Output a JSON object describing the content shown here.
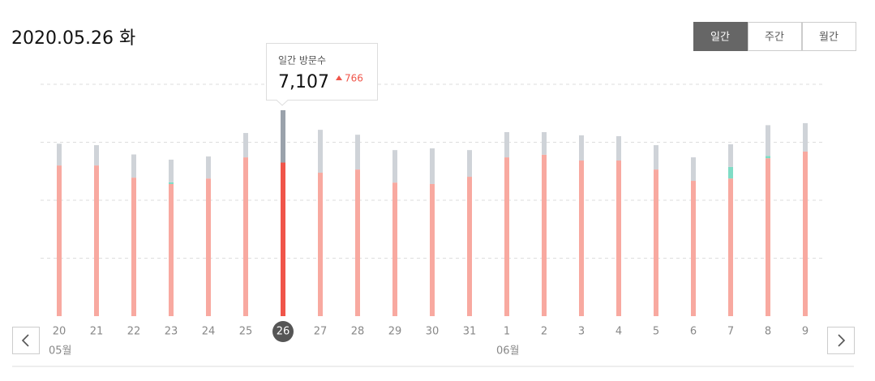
{
  "header": {
    "title": "2020.05.26 화",
    "tabs": [
      "일간",
      "주간",
      "월간"
    ],
    "active_tab": 0
  },
  "tooltip": {
    "label": "일간 방문수",
    "value": "7,107",
    "change": "766"
  },
  "chart_data": {
    "type": "bar",
    "stacked": true,
    "categories": [
      "20",
      "21",
      "22",
      "23",
      "24",
      "25",
      "26",
      "27",
      "28",
      "29",
      "30",
      "31",
      "1",
      "2",
      "3",
      "4",
      "5",
      "6",
      "7",
      "8",
      "9"
    ],
    "x_groups": [
      {
        "label": "05월",
        "start": 0
      },
      {
        "label": "06월",
        "start": 12
      }
    ],
    "selected": 6,
    "series": [
      {
        "color": "#f8a9a0",
        "highlight_color": "#f0554a",
        "values": [
          5200,
          5200,
          4780,
          4560,
          4750,
          5480,
          5300,
          4950,
          5060,
          4610,
          4560,
          4810,
          5480,
          5570,
          5370,
          5370,
          5060,
          4670,
          4750,
          5450,
          5680
        ]
      },
      {
        "color": "#7fdcc6",
        "highlight_color": "#4fc9ab",
        "values": [
          null,
          null,
          null,
          60,
          null,
          null,
          null,
          null,
          null,
          null,
          null,
          null,
          null,
          null,
          null,
          null,
          null,
          null,
          400,
          80,
          null
        ]
      },
      {
        "color": "#cfd3d8",
        "highlight_color": "#9aa2ab",
        "values": [
          750,
          700,
          800,
          780,
          760,
          840,
          1807,
          1480,
          1200,
          1120,
          1230,
          920,
          870,
          780,
          870,
          840,
          840,
          810,
          780,
          1060,
          980
        ]
      }
    ],
    "ylim": [
      0,
      8000
    ],
    "yticks": [
      2000,
      4000,
      6000,
      8000
    ],
    "grid": true
  }
}
